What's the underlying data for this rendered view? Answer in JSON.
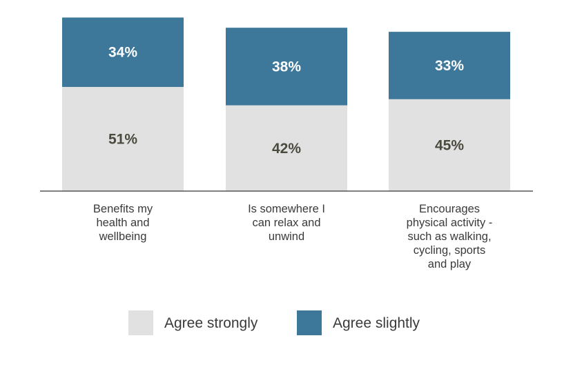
{
  "chart_data": {
    "type": "bar",
    "stacked": true,
    "categories": [
      [
        "Benefits my",
        "health and",
        "wellbeing"
      ],
      [
        "Is somewhere I",
        "can relax and",
        "unwind"
      ],
      [
        "Encourages",
        "physical activity -",
        "such as walking,",
        "cycling, sports",
        "and play"
      ]
    ],
    "series": [
      {
        "name": "Agree strongly",
        "values": [
          51,
          42,
          45
        ],
        "labels": [
          "51%",
          "42%",
          "45%"
        ],
        "color": "#e1e1e1",
        "label_color": "#4a4a3e"
      },
      {
        "name": "Agree slightly",
        "values": [
          34,
          38,
          33
        ],
        "labels": [
          "34%",
          "38%",
          "33%"
        ],
        "color": "#3d7799",
        "label_color": "#ffffff"
      }
    ],
    "ylim": [
      0,
      100
    ],
    "grid": false,
    "legend_position": "bottom-center",
    "axis_color": "#333333"
  }
}
